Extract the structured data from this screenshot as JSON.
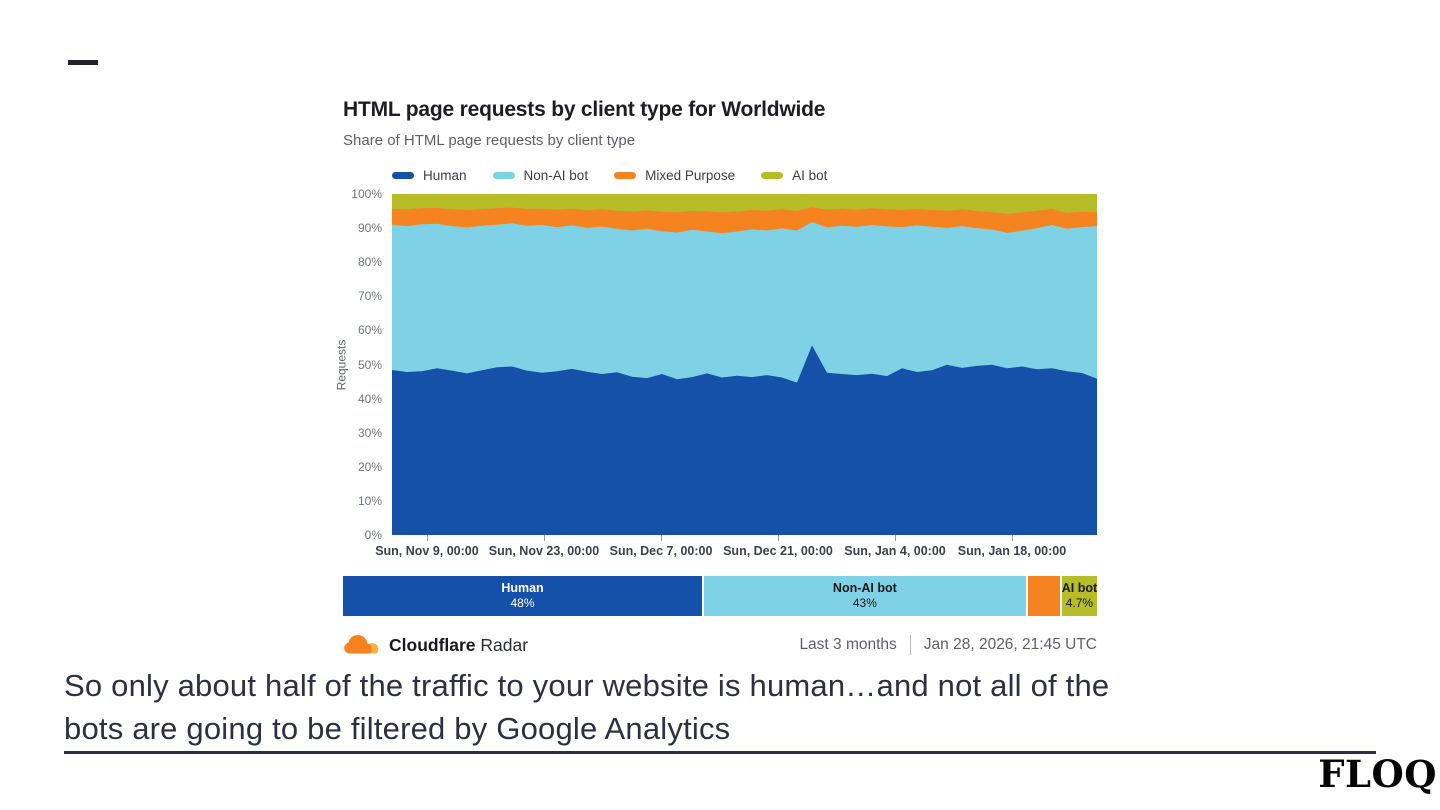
{
  "slide": {
    "caption_line1": "So only about half of the traffic to your website is human…and not all of the",
    "caption_line2": "bots are going to be filtered by Google Analytics",
    "brand": "FLOQ"
  },
  "chart": {
    "title": "HTML page requests by client type for Worldwide",
    "subtitle": "Share of HTML page requests by client type",
    "y_axis_label": "Requests",
    "footer": {
      "brand_bold": "Cloudflare",
      "brand_regular": "Radar",
      "range_label": "Last 3 months",
      "timestamp": "Jan 28, 2026, 21:45 UTC"
    }
  },
  "colors": {
    "human": "#1551A8",
    "non_ai_bot": "#7FD1E5",
    "mixed_purpose": "#F5831F",
    "ai_bot": "#B6BD28",
    "caption_text": "#2c3040",
    "cloudflare_orange": "#F6821F",
    "cloudflare_orange_light": "#FBAD41"
  },
  "chart_data": {
    "type": "area",
    "stacked": true,
    "title": "HTML page requests by client type for Worldwide",
    "subtitle": "Share of HTML page requests by client type",
    "ylabel": "Requests",
    "ylim": [
      0,
      100
    ],
    "grid": false,
    "legend_position": "top",
    "y_ticks": [
      "0%",
      "10%",
      "20%",
      "30%",
      "40%",
      "50%",
      "60%",
      "70%",
      "80%",
      "90%",
      "100%"
    ],
    "x_ticks": [
      {
        "label": "Sun, Nov 9, 00:00",
        "pos": 0.0496
      },
      {
        "label": "Sun, Nov 23, 00:00",
        "pos": 0.2156
      },
      {
        "label": "Sun, Dec 7, 00:00",
        "pos": 0.3816
      },
      {
        "label": "Sun, Dec 21, 00:00",
        "pos": 0.5475
      },
      {
        "label": "Sun, Jan 4, 00:00",
        "pos": 0.7135
      },
      {
        "label": "Sun, Jan 18, 00:00",
        "pos": 0.8794
      }
    ],
    "unit": "percent share of HTML page requests",
    "series": [
      {
        "name": "Human",
        "color": "#1551A8",
        "values": [
          48.4,
          47.8,
          48.0,
          48.9,
          48.2,
          47.4,
          48.3,
          49.2,
          49.4,
          48.2,
          47.6,
          48.0,
          48.7,
          47.9,
          47.2,
          47.7,
          46.4,
          46.0,
          47.2,
          45.7,
          46.3,
          47.4,
          46.2,
          46.7,
          46.3,
          46.9,
          46.2,
          44.7,
          55.6,
          47.6,
          47.2,
          46.9,
          47.3,
          46.6,
          48.9,
          47.8,
          48.3,
          49.9,
          49.0,
          49.6,
          49.9,
          48.9,
          49.4,
          48.6,
          48.9,
          48.0,
          47.5,
          45.8
        ]
      },
      {
        "name": "Non-AI bot",
        "color": "#7FD1E5",
        "values": [
          42.6,
          42.8,
          43.1,
          42.4,
          42.4,
          42.8,
          42.4,
          41.8,
          42.0,
          42.5,
          43.3,
          42.3,
          42.1,
          42.2,
          43.2,
          42.1,
          42.9,
          43.8,
          41.9,
          43.0,
          43.2,
          41.6,
          42.3,
          42.3,
          43.3,
          42.4,
          43.7,
          44.6,
          36.2,
          42.6,
          43.5,
          43.5,
          43.6,
          43.9,
          41.4,
          43.0,
          42.1,
          40.2,
          41.6,
          40.4,
          39.7,
          39.7,
          39.8,
          41.4,
          42.0,
          41.8,
          42.8,
          44.8
        ]
      },
      {
        "name": "Mixed Purpose",
        "color": "#F5831F",
        "values": [
          4.7,
          4.9,
          4.7,
          4.6,
          4.9,
          5.1,
          4.9,
          4.8,
          4.6,
          4.9,
          4.8,
          5.1,
          4.9,
          5.1,
          5.1,
          5.3,
          5.6,
          5.4,
          5.7,
          5.9,
          5.6,
          5.9,
          6.1,
          5.9,
          5.7,
          5.8,
          5.6,
          5.7,
          4.3,
          5.2,
          5.0,
          5.0,
          4.9,
          5.0,
          5.0,
          4.8,
          4.9,
          5.0,
          4.9,
          5.0,
          5.1,
          5.6,
          5.4,
          5.1,
          4.7,
          4.7,
          4.5,
          4.0
        ]
      },
      {
        "name": "AI bot",
        "color": "#B6BD28",
        "values": [
          4.3,
          4.5,
          4.2,
          4.1,
          4.5,
          4.7,
          4.4,
          4.2,
          4.0,
          4.4,
          4.3,
          4.6,
          4.3,
          4.8,
          4.5,
          4.9,
          5.1,
          4.8,
          5.2,
          5.4,
          4.9,
          5.1,
          5.4,
          5.1,
          4.7,
          4.9,
          4.5,
          5.0,
          3.9,
          4.6,
          4.3,
          4.6,
          4.2,
          4.5,
          4.7,
          4.4,
          4.7,
          4.9,
          4.5,
          5.0,
          5.3,
          5.8,
          5.4,
          4.9,
          4.4,
          5.5,
          5.2,
          5.4
        ]
      }
    ]
  },
  "summary_bar": {
    "segments": [
      {
        "name": "Human",
        "label": "Human",
        "value": "48%",
        "pct": 48,
        "color": "#1551A8",
        "text": "#FFFFFF"
      },
      {
        "name": "Non-AI bot",
        "label": "Non-AI bot",
        "value": "43%",
        "pct": 43,
        "color": "#7FD1E5",
        "text": "#17191c"
      },
      {
        "name": "Mixed Purpose",
        "label": "",
        "value": "",
        "pct": 4.3,
        "color": "#F5831F",
        "text": "#17191c"
      },
      {
        "name": "AI bot",
        "label": "AI bot",
        "value": "4.7%",
        "pct": 4.7,
        "color": "#B6BD28",
        "text": "#17191c"
      }
    ]
  }
}
